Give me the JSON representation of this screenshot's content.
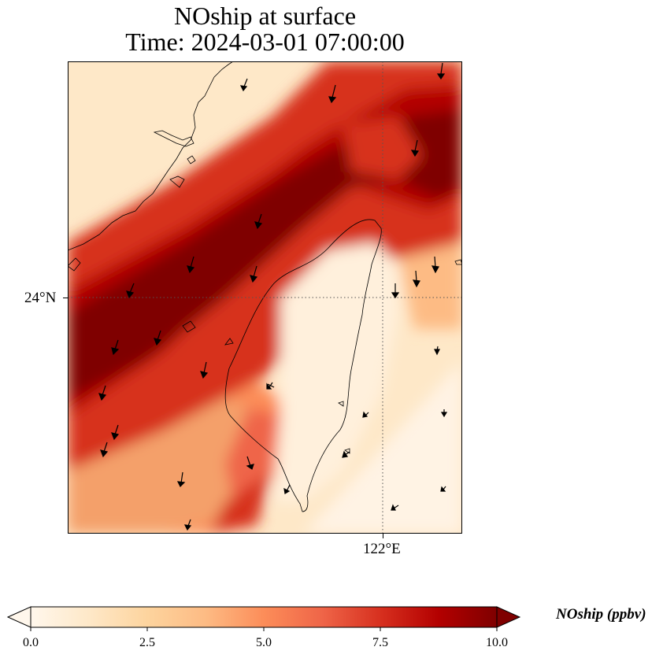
{
  "title_line1": "NOship at surface",
  "title_line2": "Time: 2024-03-01 07:00:00",
  "map": {
    "lat_label": "24°N",
    "lon_label": "122°E",
    "lat_tick": 24,
    "lon_tick": 122,
    "gridlines": "dotted"
  },
  "colorbar": {
    "label": "NOship (ppbv)",
    "min": 0.0,
    "max": 10.0,
    "extend": "both",
    "colormap": "OrRd",
    "colors": [
      "#fff7ec",
      "#fee8c8",
      "#fdd49e",
      "#fdbb84",
      "#fc8d59",
      "#ef6548",
      "#d7301f",
      "#b30000",
      "#7f0000"
    ],
    "ticks": [
      "0.0",
      "2.5",
      "5.0",
      "7.5",
      "10.0"
    ]
  }
}
